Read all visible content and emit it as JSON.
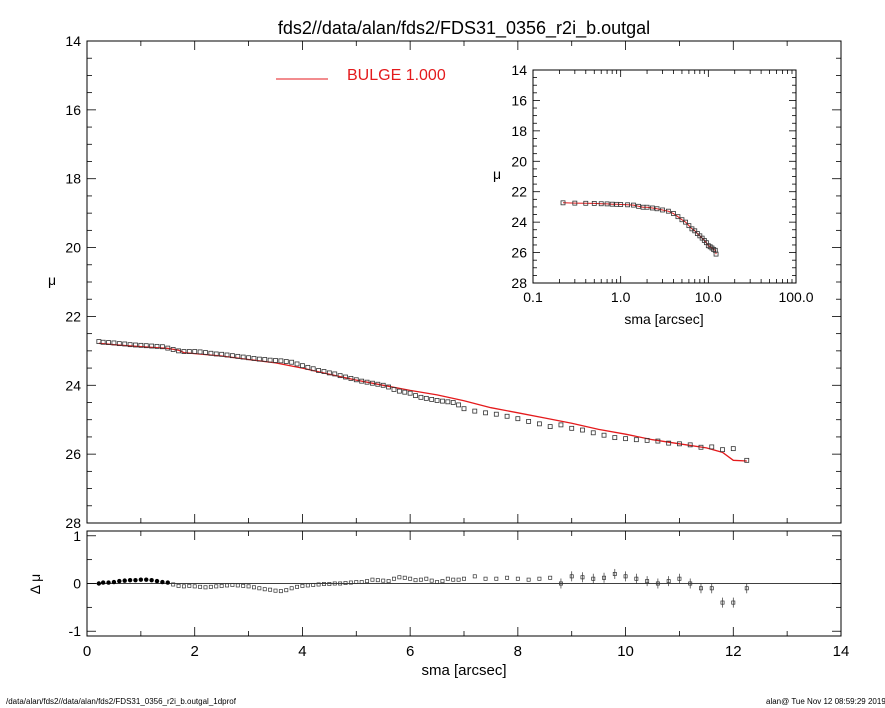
{
  "title": "fds2//data/alan/fds2/FDS31_0356_r2i_b.outgal",
  "footer_left": "/data/alan/fds2//data/alan/fds2/FDS31_0356_r2i_b.outgal_1dprof",
  "footer_right": "alan@  Tue Nov 12 08:59:29 2019",
  "colors": {
    "model": "#e41a1c",
    "data": "#000000",
    "axis": "#000000"
  },
  "chart_data": [
    {
      "id": "main",
      "type": "scatter",
      "xlabel": "sma [arcsec]",
      "ylabel": "μ",
      "xlim": [
        0,
        14
      ],
      "ylim": [
        28,
        14
      ],
      "yticks": [
        "14",
        "16",
        "18",
        "20",
        "22",
        "24",
        "26",
        "28"
      ],
      "legend": {
        "label": "BULGE  1.000",
        "position": "top-left"
      },
      "series": [
        {
          "name": "data",
          "x": [
            0.22,
            0.3,
            0.4,
            0.5,
            0.6,
            0.7,
            0.8,
            0.9,
            1.0,
            1.1,
            1.2,
            1.3,
            1.4,
            1.5,
            1.6,
            1.7,
            1.8,
            1.9,
            2.0,
            2.1,
            2.2,
            2.3,
            2.4,
            2.5,
            2.6,
            2.7,
            2.8,
            2.9,
            3.0,
            3.1,
            3.2,
            3.3,
            3.4,
            3.5,
            3.6,
            3.7,
            3.8,
            3.9,
            4.0,
            4.1,
            4.2,
            4.3,
            4.4,
            4.5,
            4.6,
            4.7,
            4.8,
            4.9,
            5.0,
            5.1,
            5.2,
            5.3,
            5.4,
            5.5,
            5.6,
            5.7,
            5.8,
            5.9,
            6.0,
            6.1,
            6.2,
            6.3,
            6.4,
            6.5,
            6.6,
            6.7,
            6.8,
            6.9,
            7.0,
            7.2,
            7.4,
            7.6,
            7.8,
            8.0,
            8.2,
            8.4,
            8.6,
            8.8,
            9.0,
            9.2,
            9.4,
            9.6,
            9.8,
            10.0,
            10.2,
            10.4,
            10.6,
            10.8,
            11.0,
            11.2,
            11.4,
            11.6,
            11.8,
            12.0,
            12.25
          ],
          "y": [
            22.73,
            22.75,
            22.76,
            22.77,
            22.79,
            22.8,
            22.82,
            22.83,
            22.84,
            22.85,
            22.86,
            22.87,
            22.88,
            22.92,
            22.96,
            23.0,
            23.02,
            23.02,
            23.02,
            23.03,
            23.05,
            23.07,
            23.09,
            23.1,
            23.12,
            23.14,
            23.16,
            23.18,
            23.2,
            23.22,
            23.24,
            23.25,
            23.27,
            23.28,
            23.29,
            23.31,
            23.33,
            23.38,
            23.43,
            23.48,
            23.52,
            23.57,
            23.6,
            23.64,
            23.67,
            23.72,
            23.76,
            23.8,
            23.84,
            23.88,
            23.91,
            23.94,
            23.97,
            24.0,
            24.05,
            24.12,
            24.17,
            24.2,
            24.23,
            24.3,
            24.35,
            24.38,
            24.41,
            24.44,
            24.46,
            24.48,
            24.5,
            24.57,
            24.68,
            24.75,
            24.8,
            24.84,
            24.9,
            24.97,
            25.05,
            25.12,
            25.2,
            25.15,
            25.25,
            25.3,
            25.38,
            25.45,
            25.52,
            25.55,
            25.58,
            25.6,
            25.62,
            25.68,
            25.7,
            25.73,
            25.8,
            25.79,
            25.87,
            25.84,
            26.18
          ]
        },
        {
          "name": "BULGE  1.000",
          "x": [
            0.22,
            0.5,
            1.0,
            1.5,
            1.7,
            1.8,
            2.0,
            2.5,
            3.0,
            3.5,
            4.0,
            4.5,
            5.0,
            5.5,
            6.0,
            6.5,
            7.0,
            7.5,
            8.0,
            8.5,
            9.0,
            9.5,
            10.0,
            10.5,
            11.0,
            11.5,
            11.8,
            12.0,
            12.25
          ],
          "y": [
            22.78,
            22.82,
            22.88,
            22.93,
            22.98,
            23.05,
            23.08,
            23.15,
            23.25,
            23.35,
            23.5,
            23.68,
            23.85,
            24.0,
            24.15,
            24.28,
            24.45,
            24.65,
            24.8,
            24.95,
            25.1,
            25.28,
            25.42,
            25.58,
            25.7,
            25.82,
            25.95,
            26.18,
            26.2
          ]
        }
      ]
    },
    {
      "id": "inset",
      "type": "scatter",
      "xlabel": "sma [arcsec]",
      "ylabel": "μ",
      "xscale": "log",
      "xlim": [
        0.1,
        100.0
      ],
      "ylim": [
        28,
        14
      ],
      "xticks": [
        "0.1",
        "1.0",
        "10.0",
        "100.0"
      ],
      "yticks": [
        "14",
        "16",
        "18",
        "20",
        "22",
        "24",
        "26",
        "28"
      ],
      "series": [
        {
          "name": "data",
          "x": [
            0.22,
            0.3,
            0.4,
            0.5,
            0.6,
            0.7,
            0.8,
            0.9,
            1.0,
            1.2,
            1.4,
            1.6,
            1.8,
            2.0,
            2.3,
            2.6,
            3.0,
            3.5,
            4.0,
            4.5,
            5.0,
            5.5,
            6.0,
            6.5,
            7.0,
            7.5,
            8.0,
            8.5,
            9.0,
            9.5,
            10.0,
            10.5,
            11.0,
            11.5,
            12.0,
            12.25
          ],
          "y": [
            22.73,
            22.75,
            22.76,
            22.77,
            22.79,
            22.8,
            22.82,
            22.83,
            22.84,
            22.86,
            22.88,
            22.96,
            23.02,
            23.02,
            23.07,
            23.12,
            23.2,
            23.28,
            23.43,
            23.64,
            23.84,
            24.0,
            24.23,
            24.44,
            24.57,
            24.75,
            24.9,
            25.05,
            25.2,
            25.35,
            25.55,
            25.62,
            25.7,
            25.8,
            25.85,
            26.1
          ]
        }
      ]
    },
    {
      "id": "residuals",
      "type": "scatter",
      "xlabel": "sma [arcsec]",
      "ylabel": "Δ μ",
      "xlim": [
        0,
        14
      ],
      "ylim": [
        -1.1,
        1.1
      ],
      "xticks": [
        "0",
        "2",
        "4",
        "6",
        "8",
        "10",
        "12",
        "14"
      ],
      "yticks": [
        "1",
        "0",
        "-1"
      ],
      "series": [
        {
          "name": "Δ μ",
          "x": [
            0.22,
            0.3,
            0.4,
            0.5,
            0.6,
            0.7,
            0.8,
            0.9,
            1.0,
            1.1,
            1.2,
            1.3,
            1.4,
            1.5,
            1.6,
            1.7,
            1.8,
            1.9,
            2.0,
            2.1,
            2.2,
            2.3,
            2.4,
            2.5,
            2.6,
            2.7,
            2.8,
            2.9,
            3.0,
            3.1,
            3.2,
            3.3,
            3.4,
            3.5,
            3.6,
            3.7,
            3.8,
            3.9,
            4.0,
            4.1,
            4.2,
            4.3,
            4.4,
            4.5,
            4.6,
            4.7,
            4.8,
            4.9,
            5.0,
            5.1,
            5.2,
            5.3,
            5.4,
            5.5,
            5.6,
            5.7,
            5.8,
            5.9,
            6.0,
            6.1,
            6.2,
            6.3,
            6.4,
            6.5,
            6.6,
            6.7,
            6.8,
            6.9,
            7.0,
            7.2,
            7.4,
            7.6,
            7.8,
            8.0,
            8.2,
            8.4,
            8.6,
            8.8,
            9.0,
            9.2,
            9.4,
            9.6,
            9.8,
            10.0,
            10.2,
            10.4,
            10.6,
            10.8,
            11.0,
            11.2,
            11.4,
            11.6,
            11.8,
            12.0,
            12.25
          ],
          "y": [
            0.0,
            0.02,
            0.02,
            0.03,
            0.05,
            0.06,
            0.07,
            0.07,
            0.08,
            0.08,
            0.07,
            0.05,
            0.03,
            0.02,
            -0.02,
            -0.05,
            -0.06,
            -0.05,
            -0.06,
            -0.07,
            -0.08,
            -0.07,
            -0.06,
            -0.05,
            -0.04,
            -0.03,
            -0.04,
            -0.05,
            -0.06,
            -0.08,
            -0.1,
            -0.12,
            -0.13,
            -0.15,
            -0.16,
            -0.14,
            -0.1,
            -0.07,
            -0.05,
            -0.04,
            -0.03,
            -0.02,
            -0.01,
            -0.01,
            0.0,
            0.0,
            0.01,
            0.02,
            0.03,
            0.03,
            0.05,
            0.08,
            0.07,
            0.06,
            0.05,
            0.1,
            0.13,
            0.12,
            0.1,
            0.07,
            0.08,
            0.1,
            0.06,
            0.03,
            0.05,
            0.1,
            0.08,
            0.08,
            0.1,
            0.15,
            0.1,
            0.1,
            0.12,
            0.1,
            0.08,
            0.1,
            0.12,
            0.0,
            0.15,
            0.13,
            0.1,
            0.12,
            0.2,
            0.15,
            0.1,
            0.05,
            0.0,
            0.05,
            0.1,
            0.0,
            -0.1,
            -0.1,
            -0.4,
            -0.4,
            -0.1
          ],
          "error_bars_from_index": 77
        }
      ]
    }
  ]
}
